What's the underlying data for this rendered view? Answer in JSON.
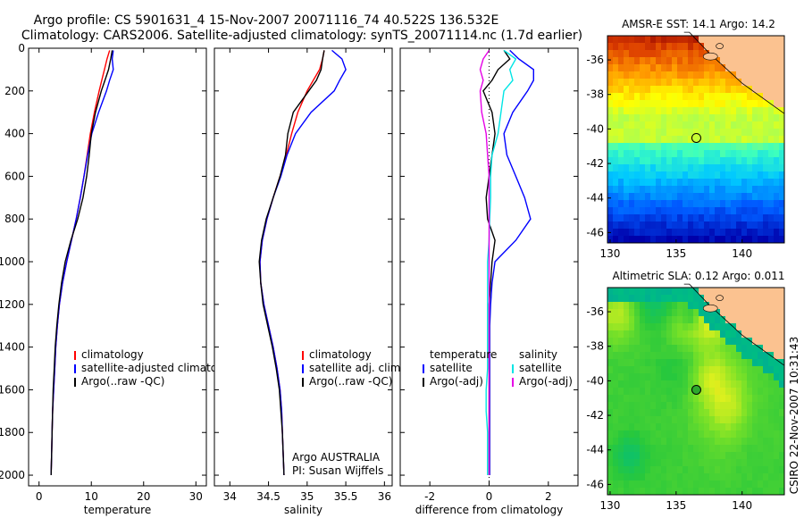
{
  "title_line1": "Argo profile: CS 5901631_4 15-Nov-2007 20071116_74 40.522S 136.532E",
  "title_line2": "Climatology: CARS2006. Satellite-adjusted climatology: synTS_20071114.nc (1.7d earlier)",
  "credit": "CSIRO 22-Nov-2007 10:31:43",
  "colors": {
    "red": "#ff0000",
    "blue": "#0000ff",
    "black": "#000000",
    "cyan": "#00e5e5",
    "magenta": "#e600e6",
    "land": "#fbc290"
  },
  "chart_data": [
    {
      "type": "line",
      "name": "temperature-profile",
      "xlabel": "temperature",
      "ylabel": "",
      "xlim": [
        -2,
        32
      ],
      "ylim": [
        2050,
        0
      ],
      "x_ticks": [
        "0",
        "10",
        "20",
        "30"
      ],
      "y_ticks": [
        "0",
        "200",
        "400",
        "600",
        "800",
        "1000",
        "1200",
        "1400",
        "1600",
        "1800",
        "2000"
      ],
      "legend": [
        "climatology",
        "satellite-adjusted climatology",
        "Argo(..raw -QC)"
      ],
      "series": [
        {
          "name": "climatology",
          "color": "#ff0000",
          "depth": [
            10,
            50,
            100,
            150,
            200,
            300,
            400,
            500,
            600,
            700,
            800,
            900,
            1000,
            1100,
            1200,
            1300,
            1400,
            1500,
            1600,
            1700,
            1800,
            1900,
            2000
          ],
          "values": [
            13.5,
            13.0,
            12.5,
            12.0,
            11.5,
            10.6,
            9.8,
            9.2,
            8.6,
            7.9,
            7.1,
            6.2,
            5.3,
            4.5,
            3.9,
            3.5,
            3.2,
            3.0,
            2.8,
            2.6,
            2.5,
            2.4,
            2.3
          ]
        },
        {
          "name": "satellite-adjusted climatology",
          "color": "#0000ff",
          "depth": [
            10,
            50,
            100,
            150,
            200,
            300,
            400,
            500,
            600,
            700,
            800,
            900,
            1000,
            1100,
            1200,
            1300,
            1400,
            1500,
            1600,
            1700,
            1800,
            1900,
            2000
          ],
          "values": [
            14.2,
            14.0,
            14.2,
            13.5,
            12.9,
            11.4,
            10.1,
            9.3,
            8.6,
            7.9,
            7.1,
            6.2,
            5.3,
            4.5,
            3.9,
            3.5,
            3.2,
            3.0,
            2.8,
            2.6,
            2.5,
            2.4,
            2.3
          ]
        },
        {
          "name": "Argo(..raw -QC)",
          "color": "#000000",
          "depth": [
            10,
            50,
            100,
            150,
            200,
            300,
            400,
            500,
            600,
            700,
            800,
            900,
            1000,
            1100,
            1200,
            1300,
            1400,
            1500,
            1600,
            1700,
            1800,
            1900,
            2000
          ],
          "values": [
            14.0,
            13.7,
            13.3,
            12.6,
            11.9,
            10.8,
            10.0,
            9.6,
            9.1,
            8.4,
            7.4,
            6.1,
            5.0,
            4.3,
            3.8,
            3.4,
            3.1,
            2.9,
            2.7,
            2.6,
            2.5,
            2.4,
            2.3
          ]
        }
      ]
    },
    {
      "type": "line",
      "name": "salinity-profile",
      "xlabel": "salinity",
      "ylabel": "",
      "xlim": [
        33.8,
        36.1
      ],
      "ylim": [
        2050,
        0
      ],
      "x_ticks": [
        "34",
        "34.5",
        "35",
        "35.5",
        "36"
      ],
      "legend": [
        "climatology",
        "satellite adj. clim.",
        "Argo(..raw -QC)"
      ],
      "annotations": [
        "Argo AUSTRALIA",
        "PI: Susan Wijffels"
      ],
      "series": [
        {
          "name": "climatology",
          "color": "#ff0000",
          "depth": [
            10,
            50,
            100,
            150,
            200,
            300,
            400,
            500,
            600,
            700,
            800,
            900,
            1000,
            1100,
            1200,
            1300,
            1400,
            1500,
            1600,
            1700,
            1800,
            1900,
            2000
          ],
          "values": [
            35.22,
            35.2,
            35.16,
            35.08,
            35.0,
            34.88,
            34.8,
            34.73,
            34.65,
            34.56,
            34.48,
            34.42,
            34.39,
            34.4,
            34.44,
            34.5,
            34.56,
            34.61,
            34.65,
            34.67,
            34.68,
            34.69,
            34.7
          ]
        },
        {
          "name": "satellite adj. clim.",
          "color": "#0000ff",
          "depth": [
            10,
            50,
            100,
            150,
            200,
            300,
            400,
            500,
            600,
            700,
            800,
            900,
            1000,
            1100,
            1200,
            1300,
            1400,
            1500,
            1600,
            1700,
            1800,
            1900,
            2000
          ],
          "values": [
            35.32,
            35.45,
            35.5,
            35.42,
            35.35,
            35.05,
            34.85,
            34.74,
            34.66,
            34.56,
            34.48,
            34.42,
            34.39,
            34.4,
            34.44,
            34.5,
            34.56,
            34.61,
            34.65,
            34.67,
            34.68,
            34.69,
            34.7
          ]
        },
        {
          "name": "Argo(..raw -QC)",
          "color": "#000000",
          "depth": [
            10,
            50,
            100,
            150,
            200,
            300,
            400,
            500,
            600,
            700,
            800,
            900,
            1000,
            1100,
            1200,
            1300,
            1400,
            1500,
            1600,
            1700,
            1800,
            1900,
            2000
          ],
          "values": [
            35.22,
            35.2,
            35.18,
            35.12,
            35.02,
            34.82,
            34.75,
            34.72,
            34.65,
            34.56,
            34.47,
            34.41,
            34.38,
            34.4,
            34.43,
            34.49,
            34.55,
            34.6,
            34.64,
            34.66,
            34.68,
            34.69,
            34.7
          ]
        }
      ]
    },
    {
      "type": "line",
      "name": "difference-profile",
      "xlabel": "difference from climatology",
      "ylabel": "",
      "xlim": [
        -3,
        3
      ],
      "ylim": [
        2050,
        0
      ],
      "x_ticks": [
        "-2",
        "0",
        "2"
      ],
      "legend_groups": [
        {
          "title": "temperature",
          "items": [
            "satellite",
            "Argo(-adj)"
          ]
        },
        {
          "title": "salinity",
          "items": [
            "satellite",
            "Argo(-adj)"
          ]
        }
      ],
      "series": [
        {
          "name": "temperature satellite",
          "color": "#0000ff",
          "depth": [
            10,
            50,
            100,
            150,
            200,
            300,
            400,
            500,
            600,
            700,
            800,
            900,
            1000,
            1100,
            1200,
            1300,
            1400,
            1500,
            1600,
            1700,
            1800,
            1900,
            2000
          ],
          "values": [
            0.7,
            1.0,
            1.5,
            1.5,
            1.3,
            0.8,
            0.5,
            0.6,
            0.9,
            1.2,
            1.4,
            0.9,
            0.2,
            0.1,
            0.05,
            0.02,
            0.02,
            0.02,
            0.02,
            0.02,
            0.02,
            0.02,
            0.02
          ]
        },
        {
          "name": "temperature Argo(-adj)",
          "color": "#000000",
          "depth": [
            10,
            50,
            100,
            150,
            200,
            300,
            400,
            500,
            600,
            700,
            800,
            900,
            1000,
            1100,
            1200,
            1300,
            1400,
            1500,
            1600,
            1700,
            1800,
            1900,
            2000
          ],
          "values": [
            0.5,
            0.7,
            0.3,
            0.1,
            -0.2,
            0.1,
            0.2,
            0.1,
            0.0,
            -0.1,
            -0.05,
            0.2,
            0.1,
            0.05,
            0.0,
            0.0,
            0.0,
            0.0,
            0.0,
            0.0,
            0.0,
            0.0,
            0.0
          ]
        },
        {
          "name": "salinity satellite",
          "color": "#00e5e5",
          "depth": [
            10,
            50,
            100,
            150,
            200,
            300,
            400,
            500,
            600,
            700,
            800,
            900,
            1000,
            1100,
            1200,
            1300,
            1400,
            1500,
            1600,
            1700,
            1800,
            1900,
            2000
          ],
          "values": [
            0.5,
            0.9,
            0.7,
            0.8,
            0.5,
            0.4,
            0.3,
            0.1,
            0.05,
            0.05,
            0.02,
            0.0,
            -0.05,
            -0.05,
            -0.05,
            -0.05,
            -0.05,
            -0.05,
            -0.1,
            -0.1,
            -0.05,
            -0.05,
            -0.05
          ]
        },
        {
          "name": "salinity Argo(-adj)",
          "color": "#e600e6",
          "depth": [
            10,
            50,
            100,
            150,
            200,
            300,
            400,
            500,
            600,
            700,
            800,
            900,
            1000,
            1100,
            1200,
            1300,
            1400,
            1500,
            1600,
            1700,
            1800,
            1900,
            2000
          ],
          "values": [
            0.0,
            -0.2,
            -0.3,
            -0.2,
            -0.3,
            -0.25,
            -0.1,
            -0.05,
            0.0,
            0.0,
            0.0,
            0.0,
            0.0,
            0.0,
            0.0,
            0.0,
            0.0,
            0.0,
            0.0,
            0.0,
            0.0,
            0.0,
            0.0
          ]
        }
      ]
    },
    {
      "type": "heatmap",
      "name": "sst-map",
      "title": "AMSR-E SST: 14.1 Argo: 14.2",
      "xlim": [
        129.8,
        143.2
      ],
      "ylim": [
        -46.6,
        -34.6
      ],
      "x_ticks": [
        "130",
        "135",
        "140"
      ],
      "y_ticks": [
        "-36",
        "-38",
        "-40",
        "-42",
        "-44",
        "-46"
      ],
      "marker": {
        "lon": 136.532,
        "lat": -40.522
      }
    },
    {
      "type": "heatmap",
      "name": "sla-map",
      "title": "Altimetric SLA: 0.12 Argo: 0.011",
      "xlim": [
        129.8,
        143.2
      ],
      "ylim": [
        -46.6,
        -34.6
      ],
      "x_ticks": [
        "130",
        "135",
        "140"
      ],
      "y_ticks": [
        "-36",
        "-38",
        "-40",
        "-42",
        "-44",
        "-46"
      ],
      "marker": {
        "lon": 136.532,
        "lat": -40.522
      }
    }
  ]
}
